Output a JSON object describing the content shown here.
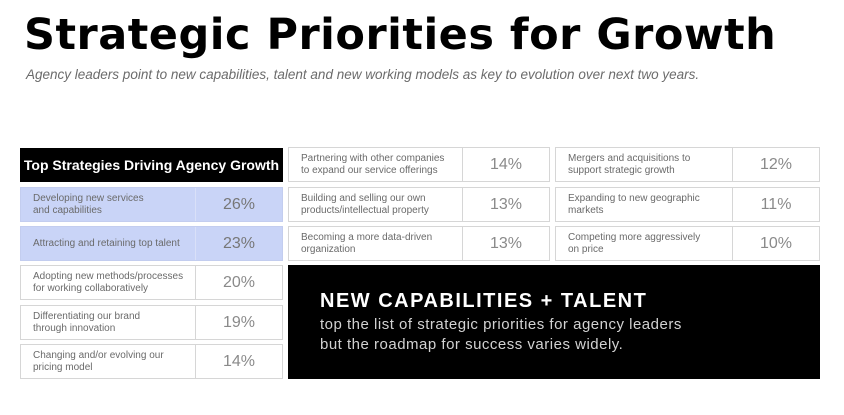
{
  "title": "Strategic Priorities for Growth",
  "subtitle": "Agency leaders point to new capabilities, talent and new working models as key to evolution over next two years.",
  "table": {
    "header": "Top Strategies Driving Agency Growth",
    "column1": [
      {
        "label": "Developing new services\nand capabilities",
        "value": "26%"
      },
      {
        "label": "Attracting and retaining top talent",
        "value": "23%"
      },
      {
        "label": "Adopting new methods/processes\nfor working collaboratively",
        "value": "20%"
      },
      {
        "label": "Differentiating our brand\nthrough innovation",
        "value": "19%"
      },
      {
        "label": "Changing and/or evolving our\npricing model",
        "value": "14%"
      }
    ],
    "column2": [
      {
        "label": "Partnering with other companies\nto expand our service offerings",
        "value": "14%"
      },
      {
        "label": "Building and selling our own\nproducts/intellectual property",
        "value": "13%"
      },
      {
        "label": "Becoming a more data-driven\norganization",
        "value": "13%"
      }
    ],
    "column3": [
      {
        "label": "Mergers and acquisitions to\nsupport strategic growth",
        "value": "12%"
      },
      {
        "label": "Expanding to new geographic\nmarkets",
        "value": "11%"
      },
      {
        "label": "Competing more aggressively\non price",
        "value": "10%"
      }
    ]
  },
  "callout": {
    "heading": "NEW CAPABILITIES + TALENT",
    "body": "top the list of strategic priorities for agency leaders\nbut the roadmap for success varies widely."
  },
  "colors": {
    "highlight": "#c9d4f7",
    "header_bg": "#000000"
  }
}
